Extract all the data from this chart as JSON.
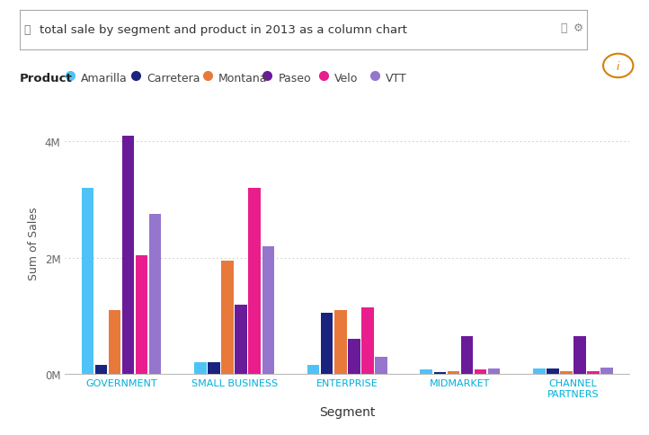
{
  "title_bar_text": "total sale by segment and product in 2013 as a column chart",
  "legend_title": "Product",
  "products": [
    "Amarilla",
    "Carretera",
    "Montana",
    "Paseo",
    "Velo",
    "VTT"
  ],
  "product_colors": [
    "#4FC3F7",
    "#1A237E",
    "#E8793A",
    "#6A1B9A",
    "#E91E8C",
    "#9575CD"
  ],
  "segments": [
    "GOVERNMENT",
    "SMALL BUSINESS",
    "ENTERPRISE",
    "MIDMARKET",
    "CHANNEL\nPARTNERS"
  ],
  "values": {
    "GOVERNMENT": [
      3200000,
      150000,
      1100000,
      4100000,
      2050000,
      2750000
    ],
    "SMALL BUSINESS": [
      200000,
      200000,
      1950000,
      1200000,
      3200000,
      2200000
    ],
    "ENTERPRISE": [
      150000,
      1050000,
      1100000,
      600000,
      1150000,
      300000
    ],
    "MIDMARKET": [
      80000,
      40000,
      50000,
      650000,
      80000,
      90000
    ],
    "CHANNEL\nPARTNERS": [
      90000,
      90000,
      45000,
      650000,
      45000,
      110000
    ]
  },
  "ylabel": "Sum of Sales",
  "xlabel": "Segment",
  "ylim": [
    0,
    4500000
  ],
  "ytick_vals": [
    0,
    2000000,
    4000000
  ],
  "ytick_labels": [
    "0M",
    "2M",
    "4M"
  ],
  "background_color": "#ffffff",
  "grid_color": "#bbbbbb",
  "bar_width": 0.12,
  "xtick_color": "#00B0D8",
  "ylabel_color": "#555555",
  "xlabel_color": "#333333"
}
